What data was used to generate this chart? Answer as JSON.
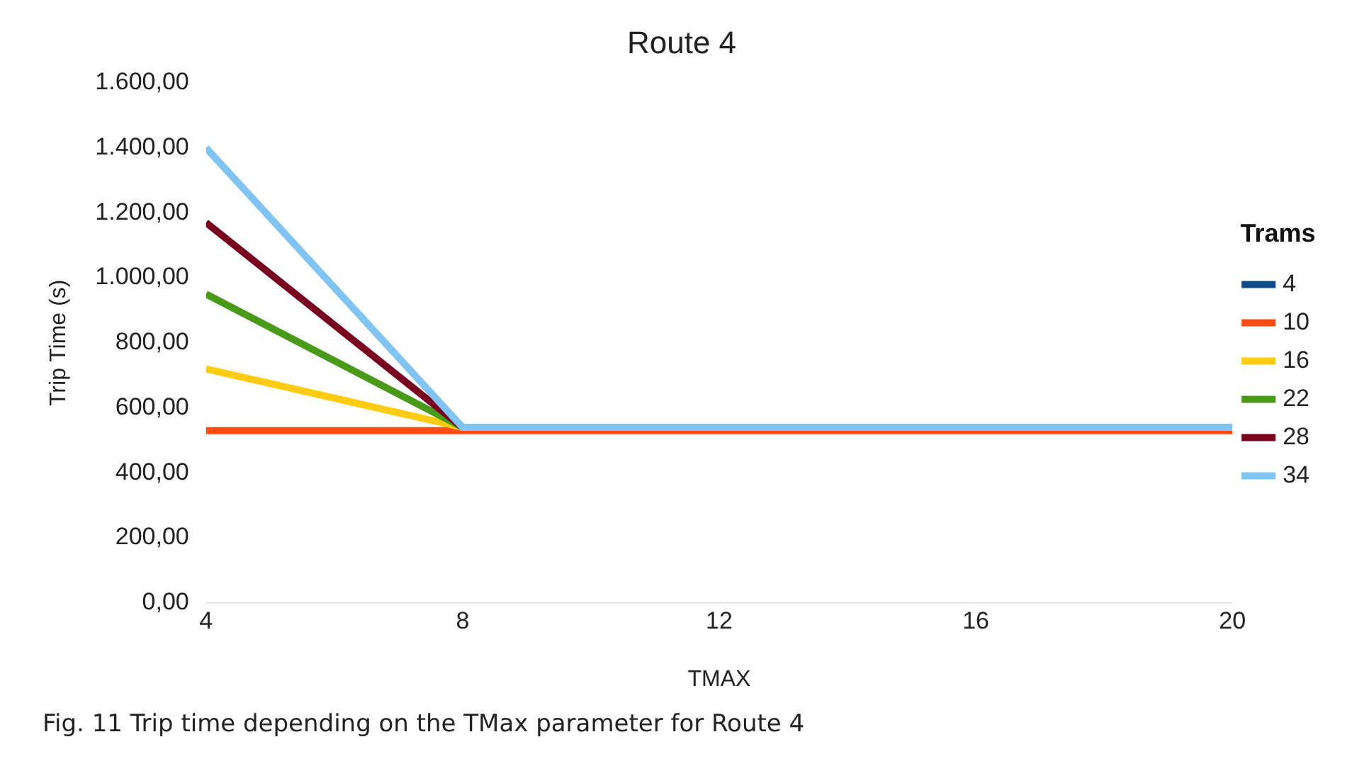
{
  "chart_data": {
    "type": "line",
    "title": "Route 4",
    "xlabel": "TMAX",
    "ylabel": "Trip Time (s)",
    "legend_title": "Trams",
    "legend": "right",
    "grid": false,
    "marker": "none",
    "line_style": "solid",
    "x": [
      4,
      8,
      12,
      16,
      20
    ],
    "xlim": [
      4,
      20
    ],
    "xticks": [
      4,
      8,
      12,
      16,
      20
    ],
    "ylim": [
      0,
      1600
    ],
    "yticks": [
      {
        "value": 0,
        "label": "0,00"
      },
      {
        "value": 200,
        "label": "200,00"
      },
      {
        "value": 400,
        "label": "400,00"
      },
      {
        "value": 600,
        "label": "600,00"
      },
      {
        "value": 800,
        "label": "800,00"
      },
      {
        "value": 1000,
        "label": "1.000,00"
      },
      {
        "value": 1200,
        "label": "1.200,00"
      },
      {
        "value": 1400,
        "label": "1.400,00"
      },
      {
        "value": 1600,
        "label": "1.600,00"
      }
    ],
    "series": [
      {
        "name": "4",
        "color": "#0e4a8a",
        "values": [
          null,
          null,
          null,
          null,
          null
        ]
      },
      {
        "name": "10",
        "color": "#ff4a12",
        "values": [
          530,
          530,
          530,
          530,
          530
        ]
      },
      {
        "name": "16",
        "color": "#ffcc12",
        "values": [
          720,
          540,
          null,
          null,
          null
        ]
      },
      {
        "name": "22",
        "color": "#4a9a1a",
        "values": [
          950,
          540,
          null,
          null,
          null
        ]
      },
      {
        "name": "28",
        "color": "#7a0020",
        "values": [
          1170,
          540,
          null,
          null,
          null
        ]
      },
      {
        "name": "34",
        "color": "#80c4f4",
        "values": [
          1400,
          540,
          540,
          540,
          540
        ]
      }
    ],
    "annotations": [
      "Fig. 11  Trip time depending on the TMax parameter for Route 4"
    ]
  }
}
